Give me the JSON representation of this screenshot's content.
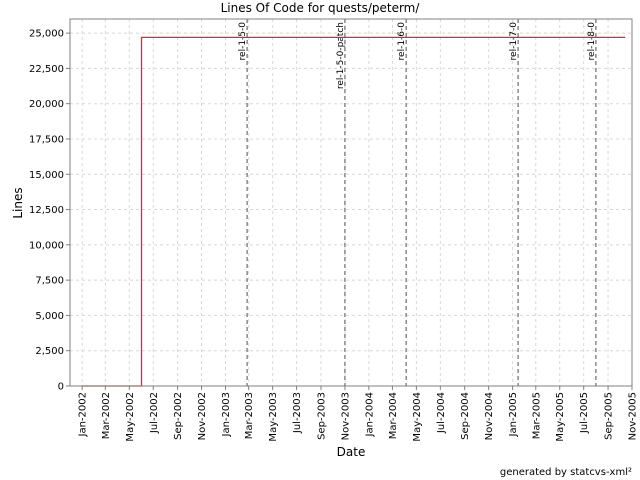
{
  "chart_data": {
    "type": "line",
    "title": "Lines Of Code for quests/peterm/",
    "xlabel": "Date",
    "ylabel": "Lines",
    "footer": "generated by statcvs-xml²",
    "x_ticks": [
      "Jan-2002",
      "Mar-2002",
      "May-2002",
      "Jul-2002",
      "Sep-2002",
      "Nov-2002",
      "Jan-2003",
      "Mar-2003",
      "May-2003",
      "Jul-2003",
      "Sep-2003",
      "Nov-2003",
      "Jan-2004",
      "Mar-2004",
      "May-2004",
      "Jul-2004",
      "Sep-2004",
      "Nov-2004",
      "Jan-2005",
      "Mar-2005",
      "May-2005",
      "Jul-2005",
      "Sep-2005",
      "Nov-2005"
    ],
    "y_ticks": [
      0,
      2500,
      5000,
      7500,
      10000,
      12500,
      15000,
      17500,
      20000,
      22500,
      25000
    ],
    "y_tick_labels": [
      "0",
      "2,500",
      "5,000",
      "7,500",
      "10,000",
      "12,500",
      "15,000",
      "17,500",
      "20,000",
      "22,500",
      "25,000"
    ],
    "ylim": [
      0,
      26000
    ],
    "xlim": [
      "2001-12-01",
      "2005-11-01"
    ],
    "grid": true,
    "series": [
      {
        "color": "#c0392b",
        "points": [
          {
            "x": "2002-01-01",
            "y": 0
          },
          {
            "x": "2002-06-01",
            "y": 0
          },
          {
            "x": "2002-06-01",
            "y": 24700
          },
          {
            "x": "2005-10-15",
            "y": 24700
          }
        ]
      }
    ],
    "markers": [
      {
        "label": "rel-1-5-0",
        "x": "2003-02-25"
      },
      {
        "label": "rel-1-5-0-patch",
        "x": "2003-11-01"
      },
      {
        "label": "rel-1-6-0",
        "x": "2004-04-05"
      },
      {
        "label": "rel-1-7-0",
        "x": "2005-01-15"
      },
      {
        "label": "rel-1-8-0",
        "x": "2005-08-01"
      }
    ]
  }
}
